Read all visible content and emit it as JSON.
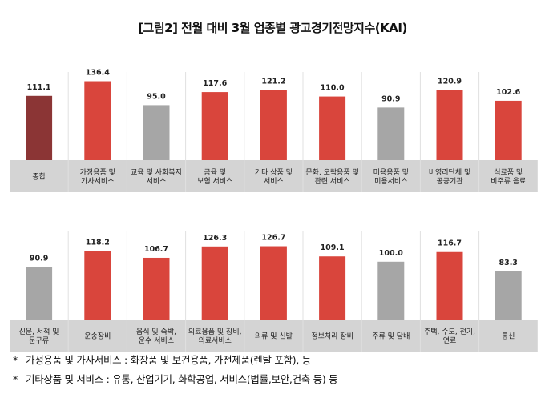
{
  "title": "[그림2] 전월 대비 3월 업종별 광고경기전망지수(KAI)",
  "colors": {
    "total": "#8b3535",
    "above": "#d9453c",
    "below": "#a6a6a6",
    "label_bg": "#d4d4d4"
  },
  "chart_data": [
    {
      "type": "bar",
      "categories": [
        "종합",
        "가정용품 및\n가사서비스",
        "교육 및 사회복지\n서비스",
        "금융 및\n보험 서비스",
        "기타 상품 및\n서비스",
        "문화, 오락용품 및\n관련 서비스",
        "미용용품 및\n미용서비스",
        "비영리단체 및\n공공기관",
        "식료품 및\n비주류 음료"
      ],
      "values": [
        111.1,
        136.4,
        95.0,
        117.6,
        121.2,
        110.0,
        90.9,
        120.9,
        102.6
      ],
      "value_labels": [
        "111.1",
        "136.4",
        "95.0",
        "117.6",
        "121.2",
        "110.0",
        "90.9",
        "120.9",
        "102.6"
      ],
      "bar_colors": [
        "total",
        "above",
        "below",
        "above",
        "above",
        "above",
        "below",
        "above",
        "above"
      ]
    },
    {
      "type": "bar",
      "categories": [
        "신문, 서적 및\n문구류",
        "운송장비",
        "음식 및 숙박,\n운수 서비스",
        "의료용품 및 장비,\n의료서비스",
        "의류 및 신발",
        "정보처리 장비",
        "주류 및 담배",
        "주택, 수도, 전기,\n연료",
        "통신"
      ],
      "values": [
        90.9,
        118.2,
        106.7,
        126.3,
        126.7,
        109.1,
        100.0,
        116.7,
        83.3
      ],
      "value_labels": [
        "90.9",
        "118.2",
        "106.7",
        "126.3",
        "126.7",
        "109.1",
        "100.0",
        "116.7",
        "83.3"
      ],
      "bar_colors": [
        "below",
        "above",
        "above",
        "above",
        "above",
        "above",
        "below",
        "above",
        "below"
      ]
    }
  ],
  "notes": [
    {
      "mark": "*",
      "text": "가정용품 및 가사서비스 : 화장품 및 보건용품, 가전제품(렌탈 포함), 등"
    },
    {
      "mark": "*",
      "text": "기타상품 및 서비스 : 유통, 산업기기, 화학공업, 서비스(법률,보안,건축 등) 등"
    }
  ]
}
